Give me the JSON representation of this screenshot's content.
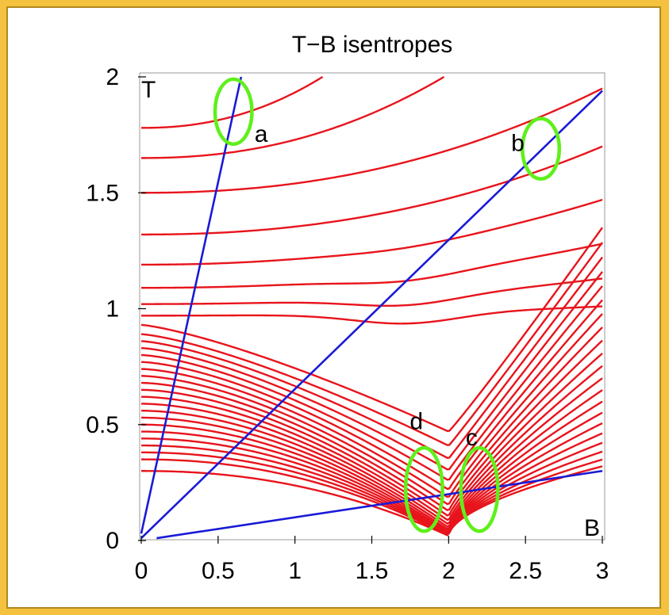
{
  "chart_data": {
    "type": "line",
    "title": "T−B isentropes",
    "xlabel": "B",
    "ylabel": "T",
    "xlim": [
      0,
      3
    ],
    "ylim": [
      0,
      2
    ],
    "x_ticks": [
      {
        "value": 0,
        "label": "0"
      },
      {
        "value": 0.5,
        "label": "0.5"
      },
      {
        "value": 1,
        "label": "1"
      },
      {
        "value": 1.5,
        "label": "1.5"
      },
      {
        "value": 2,
        "label": "2"
      },
      {
        "value": 2.5,
        "label": "2.5"
      },
      {
        "value": 3,
        "label": "3"
      }
    ],
    "y_ticks": [
      {
        "value": 0,
        "label": "0"
      },
      {
        "value": 0.5,
        "label": "0.5"
      },
      {
        "value": 1,
        "label": "1"
      },
      {
        "value": 1.5,
        "label": "1.5"
      },
      {
        "value": 2,
        "label": "2"
      }
    ],
    "isentrope_color": "#e8141c",
    "line_color": "#1a1ad6",
    "ellipse_color": "#5ef01a",
    "frame_color": "#b08a1f",
    "background_color": "#f4c23e",
    "isentrope_model": {
      "critical_B": 2.0,
      "x_range": [
        0,
        3
      ]
    },
    "isentropes_upper": [
      {
        "T0": 1.78,
        "x_max": 1.18,
        "T_end": 2.0
      },
      {
        "T0": 1.65,
        "x_max": 1.97,
        "T_end": 2.0
      },
      {
        "T0": 1.5,
        "x_max": 3.0,
        "T_end": 1.95
      },
      {
        "T0": 1.32,
        "x_max": 3.0,
        "T_end": 1.7
      },
      {
        "T0": 1.19,
        "x_max": 3.0,
        "T_end": 1.47
      },
      {
        "T0": 1.09,
        "x_max": 3.0,
        "T_end": 1.28
      },
      {
        "T0": 1.02,
        "x_max": 3.0,
        "T_end": 1.13
      },
      {
        "T0": 0.97,
        "x_max": 3.0,
        "T_end": 1.01
      }
    ],
    "isentropes_lower": [
      0.93,
      0.89,
      0.86,
      0.83,
      0.8,
      0.77,
      0.74,
      0.71,
      0.68,
      0.65,
      0.62,
      0.59,
      0.56,
      0.53,
      0.5,
      0.47,
      0.44,
      0.41,
      0.38,
      0.35,
      0.3
    ],
    "blue_lines": [
      {
        "from": [
          0.0,
          0.03
        ],
        "to": [
          0.65,
          2.0
        ]
      },
      {
        "from": [
          0.0,
          0.01
        ],
        "to": [
          3.0,
          1.94
        ]
      },
      {
        "from": [
          0.1,
          0.01
        ],
        "to": [
          3.0,
          0.3
        ]
      }
    ],
    "ellipses": [
      {
        "label": "a",
        "cx": 0.6,
        "cy": 1.85,
        "rx": 0.12,
        "ry": 0.14,
        "label_at": [
          0.78,
          1.72
        ]
      },
      {
        "label": "b",
        "cx": 2.6,
        "cy": 1.69,
        "rx": 0.12,
        "ry": 0.13,
        "label_at": [
          2.45,
          1.68
        ]
      },
      {
        "label": "c",
        "cx": 2.2,
        "cy": 0.22,
        "rx": 0.12,
        "ry": 0.18,
        "label_at": [
          2.15,
          0.41
        ]
      },
      {
        "label": "d",
        "cx": 1.84,
        "cy": 0.22,
        "rx": 0.12,
        "ry": 0.18,
        "label_at": [
          1.79,
          0.48
        ]
      }
    ]
  }
}
